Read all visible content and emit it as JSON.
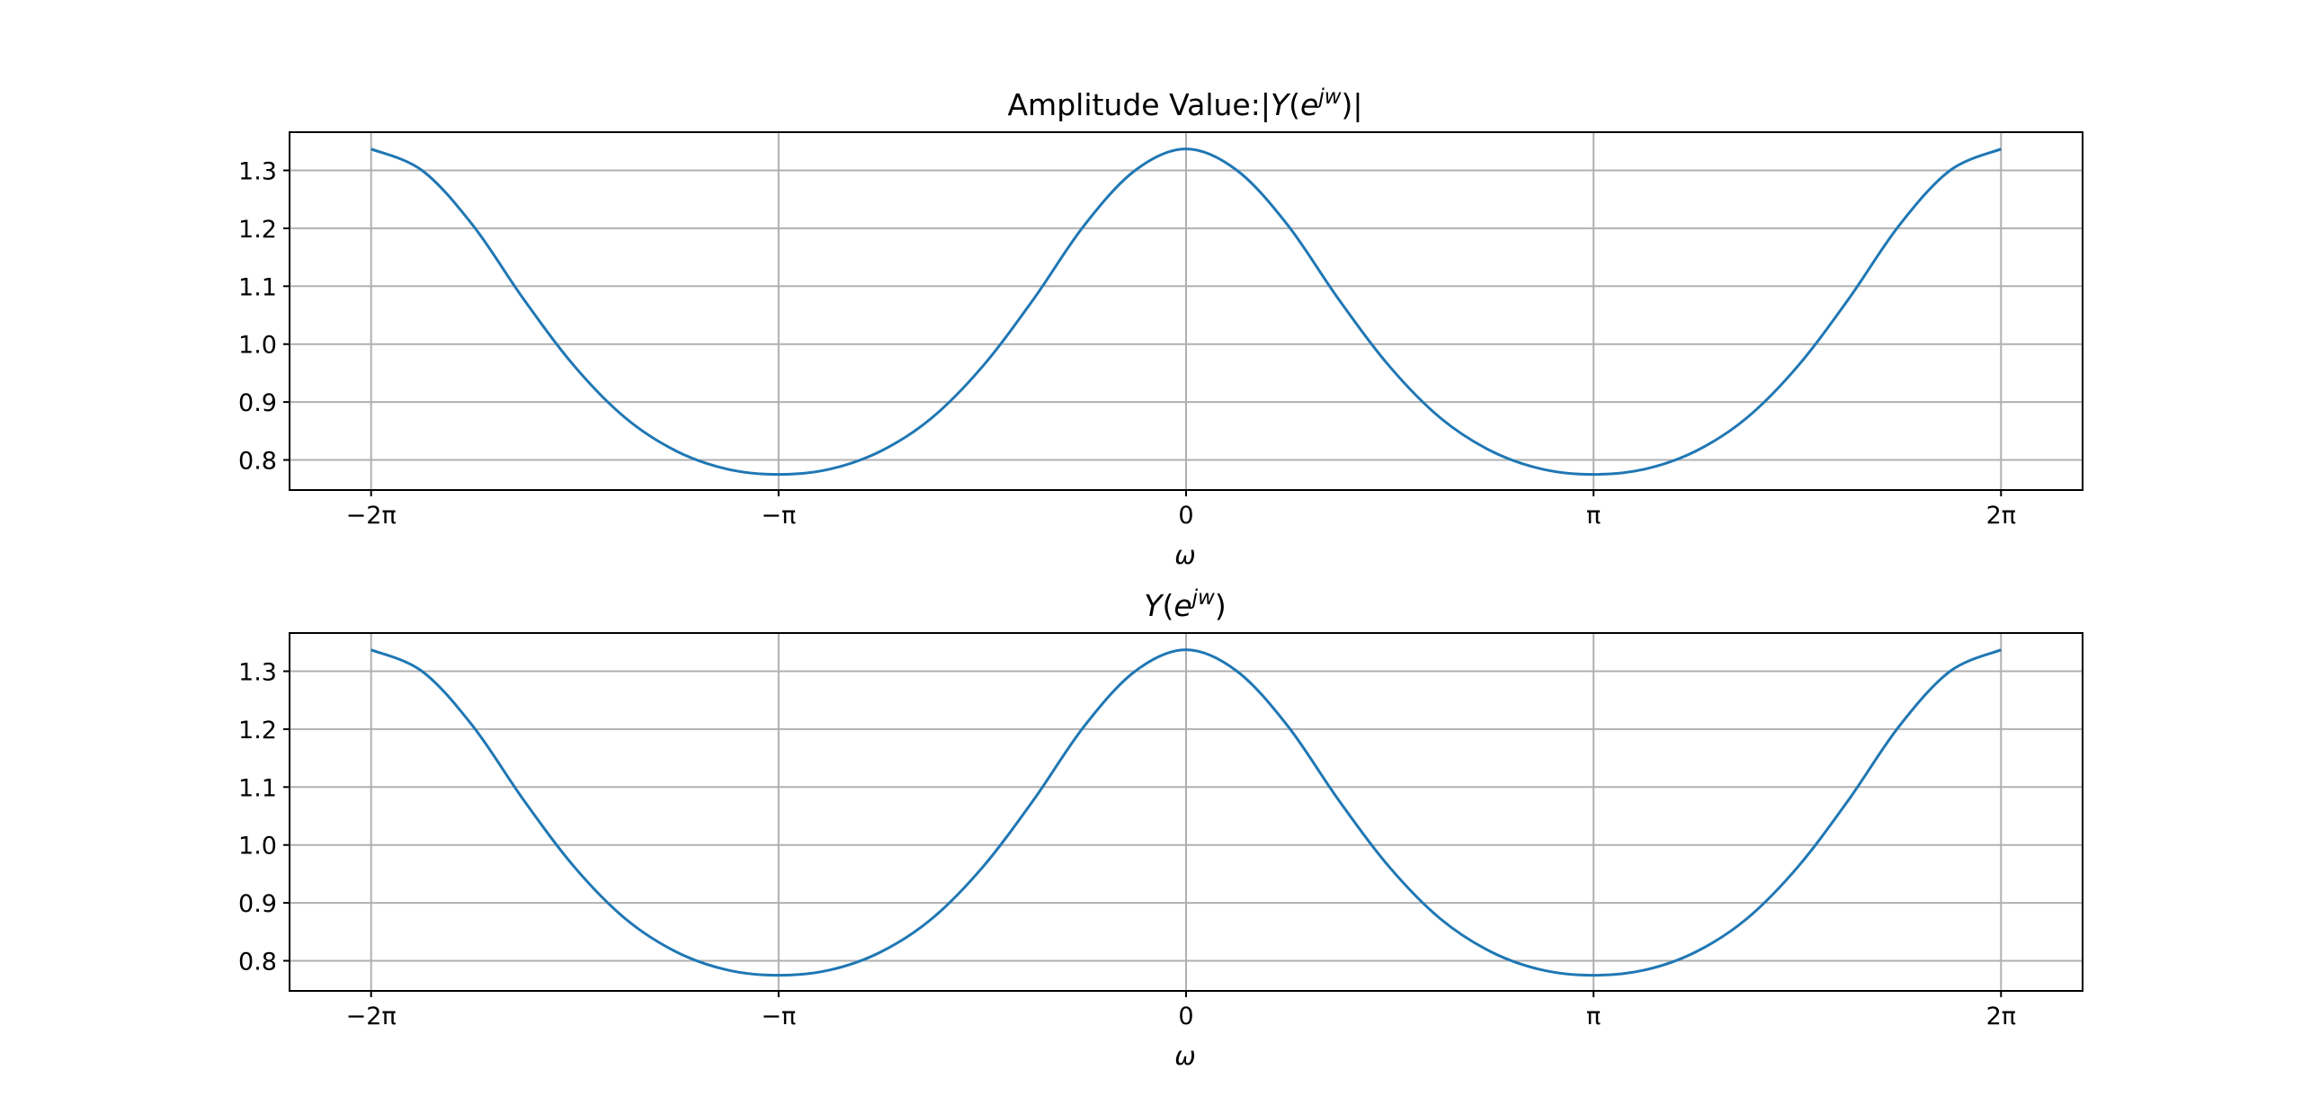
{
  "chart_data": [
    {
      "type": "line",
      "title": "Amplitude Value:|Y(e^{jw})|",
      "xlabel": "ω",
      "ylabel": "",
      "grid": true,
      "xlim": [
        -6.912,
        6.912
      ],
      "ylim": [
        0.748,
        1.366
      ],
      "xticks": [
        -6.2832,
        -3.1416,
        0,
        3.1416,
        6.2832
      ],
      "xtick_labels": [
        "−2π",
        "−π",
        "0",
        "π",
        "2π"
      ],
      "yticks": [
        0.8,
        0.9,
        1.0,
        1.1,
        1.2,
        1.3
      ],
      "ytick_labels": [
        "0.8",
        "0.9",
        "1.0",
        "1.1",
        "1.2",
        "1.3"
      ],
      "series": [
        {
          "color": "#1f77b4",
          "x": [
            -6.2832,
            -5.8905,
            -5.4978,
            -5.1051,
            -4.7124,
            -4.3197,
            -3.927,
            -3.5343,
            -3.1416,
            -2.7489,
            -2.3562,
            -1.9635,
            -1.5708,
            -1.1781,
            -0.7854,
            -0.3927,
            0,
            0.3927,
            0.7854,
            1.1781,
            1.5708,
            1.9635,
            2.3562,
            2.7489,
            3.1416,
            3.5343,
            3.927,
            4.3197,
            4.7124,
            5.1051,
            5.4978,
            5.8905,
            6.2832
          ],
          "y": [
            1.337,
            1.3,
            1.205,
            1.077,
            0.961,
            0.872,
            0.815,
            0.784,
            0.775,
            0.784,
            0.815,
            0.872,
            0.961,
            1.077,
            1.205,
            1.3,
            1.337,
            1.3,
            1.205,
            1.077,
            0.961,
            0.872,
            0.815,
            0.784,
            0.775,
            0.784,
            0.815,
            0.872,
            0.961,
            1.077,
            1.205,
            1.3,
            1.337
          ]
        }
      ]
    },
    {
      "type": "line",
      "title": "Y(e^{jw})",
      "xlabel": "ω",
      "ylabel": "",
      "grid": true,
      "xlim": [
        -6.912,
        6.912
      ],
      "ylim": [
        0.748,
        1.366
      ],
      "xticks": [
        -6.2832,
        -3.1416,
        0,
        3.1416,
        6.2832
      ],
      "xtick_labels": [
        "−2π",
        "−π",
        "0",
        "π",
        "2π"
      ],
      "yticks": [
        0.8,
        0.9,
        1.0,
        1.1,
        1.2,
        1.3
      ],
      "ytick_labels": [
        "0.8",
        "0.9",
        "1.0",
        "1.1",
        "1.2",
        "1.3"
      ],
      "series": [
        {
          "color": "#1f77b4",
          "x": [
            -6.2832,
            -5.8905,
            -5.4978,
            -5.1051,
            -4.7124,
            -4.3197,
            -3.927,
            -3.5343,
            -3.1416,
            -2.7489,
            -2.3562,
            -1.9635,
            -1.5708,
            -1.1781,
            -0.7854,
            -0.3927,
            0,
            0.3927,
            0.7854,
            1.1781,
            1.5708,
            1.9635,
            2.3562,
            2.7489,
            3.1416,
            3.5343,
            3.927,
            4.3197,
            4.7124,
            5.1051,
            5.4978,
            5.8905,
            6.2832
          ],
          "y": [
            1.337,
            1.3,
            1.205,
            1.077,
            0.961,
            0.872,
            0.815,
            0.784,
            0.775,
            0.784,
            0.815,
            0.872,
            0.961,
            1.077,
            1.205,
            1.3,
            1.337,
            1.3,
            1.205,
            1.077,
            0.961,
            0.872,
            0.815,
            0.784,
            0.775,
            0.784,
            0.815,
            0.872,
            0.961,
            1.077,
            1.205,
            1.3,
            1.337
          ]
        }
      ]
    }
  ]
}
